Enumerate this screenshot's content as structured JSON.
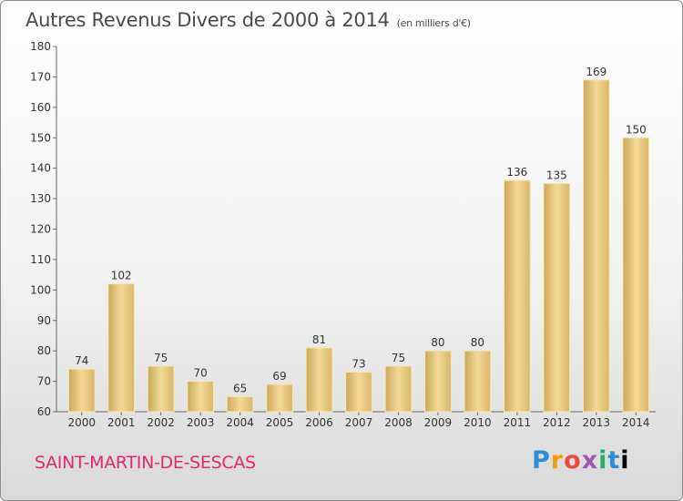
{
  "chart_data": {
    "type": "bar",
    "title": "Autres Revenus Divers de 2000 à 2014",
    "subtitle": "(en milliers d'€)",
    "categories": [
      "2000",
      "2001",
      "2002",
      "2003",
      "2004",
      "2005",
      "2006",
      "2007",
      "2008",
      "2009",
      "2010",
      "2011",
      "2012",
      "2013",
      "2014"
    ],
    "values": [
      74,
      102,
      75,
      70,
      65,
      69,
      81,
      73,
      75,
      80,
      80,
      136,
      135,
      169,
      150
    ],
    "ylim": [
      60,
      180
    ],
    "yticks": [
      60,
      70,
      80,
      90,
      100,
      110,
      120,
      130,
      140,
      150,
      160,
      170,
      180
    ],
    "grid": false,
    "bar_color": "#e6c97e"
  },
  "footer": {
    "commune": "SAINT-MARTIN-DE-SESCAS",
    "logo": "Proxiti"
  }
}
